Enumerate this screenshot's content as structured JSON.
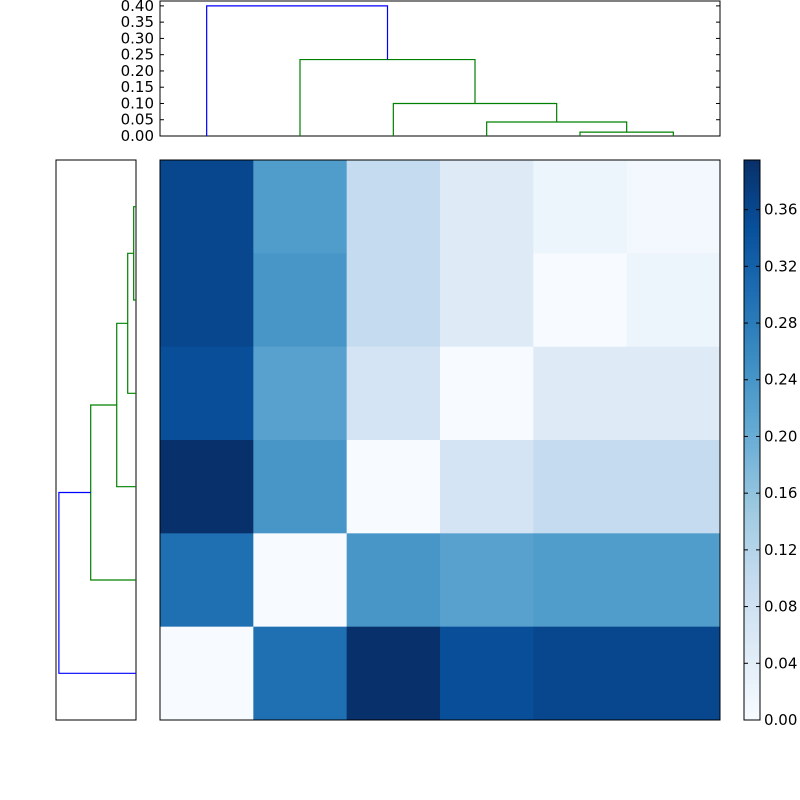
{
  "chart_data": {
    "type": "heatmap",
    "title": "",
    "colormap": "Blues",
    "color_range": [
      0,
      0.395
    ],
    "matrix": [
      [
        0.36,
        0.23,
        0.1,
        0.05,
        0.02,
        0.01
      ],
      [
        0.36,
        0.24,
        0.1,
        0.05,
        0.0,
        0.02
      ],
      [
        0.35,
        0.22,
        0.07,
        0.0,
        0.05,
        0.05
      ],
      [
        0.395,
        0.24,
        0.0,
        0.07,
        0.1,
        0.1
      ],
      [
        0.3,
        0.0,
        0.24,
        0.22,
        0.23,
        0.23
      ],
      [
        0.0,
        0.3,
        0.395,
        0.35,
        0.36,
        0.36
      ]
    ],
    "colorbar_ticks": [
      "0.00",
      "0.04",
      "0.08",
      "0.12",
      "0.16",
      "0.20",
      "0.24",
      "0.28",
      "0.32",
      "0.36"
    ],
    "dendrogram": {
      "ylim": [
        0,
        0.415
      ],
      "yticks": [
        "0.00",
        "0.05",
        "0.10",
        "0.15",
        "0.20",
        "0.25",
        "0.30",
        "0.35",
        "0.40"
      ],
      "merges": [
        {
          "a": "L4",
          "b": "L5",
          "height": 0.012,
          "color": "#008000"
        },
        {
          "a": "L3",
          "b": "C0",
          "height": 0.043,
          "color": "#008000"
        },
        {
          "a": "L2",
          "b": "C1",
          "height": 0.1,
          "color": "#008000"
        },
        {
          "a": "L1",
          "b": "C2",
          "height": 0.235,
          "color": "#008000"
        },
        {
          "a": "L0",
          "b": "C3",
          "height": 0.4,
          "color": "#0000ff"
        }
      ]
    }
  }
}
